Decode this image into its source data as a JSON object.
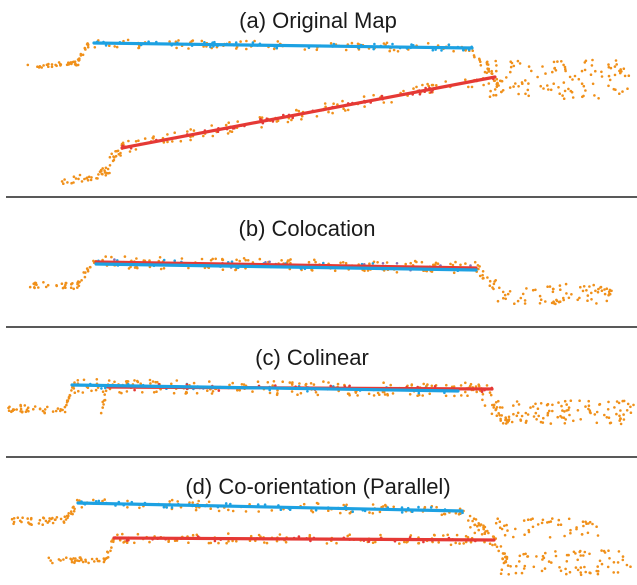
{
  "colors": {
    "blue_line": "#1da1e2",
    "red_line": "#e53935",
    "points": "#f0901a",
    "divider": "#222222",
    "text": "#1a1a1a"
  },
  "panels": [
    {
      "id": "a",
      "title": "(a) Original Map",
      "description": "Two separate line segments in different positions and orientations"
    },
    {
      "id": "b",
      "title": "(b) Colocation",
      "description": "Blue and red segments coincide"
    },
    {
      "id": "c",
      "title": "(c) Colinear",
      "description": "Segments lie on the same line, shifted along it"
    },
    {
      "id": "d",
      "title": "(d) Co-orientation (Parallel)",
      "description": "Segments parallel but offset vertically"
    }
  ]
}
